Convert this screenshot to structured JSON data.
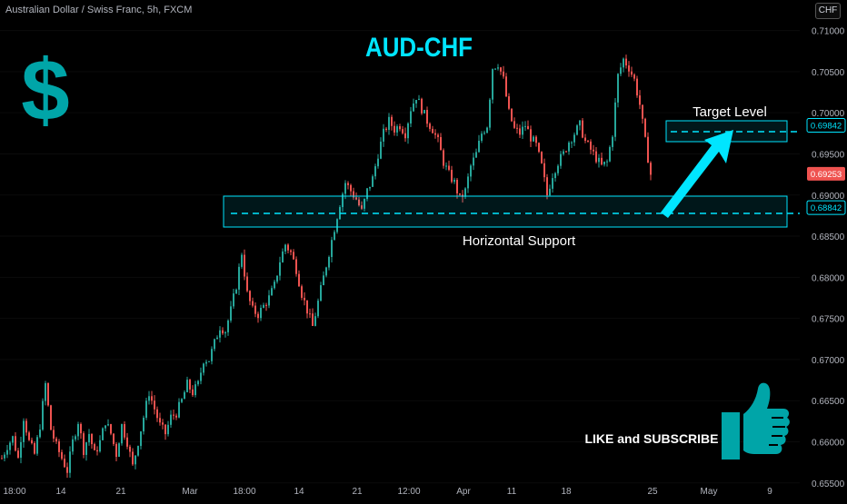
{
  "header": {
    "symbol_info": "Australian Dollar / Swiss Franc, 5h, FXCM",
    "currency_badge": "CHF"
  },
  "colors": {
    "background": "#000000",
    "bull": "#26a69a",
    "bear": "#ef5350",
    "accent": "#00e5ff",
    "text": "#ffffff",
    "axis_text": "#b2b5be",
    "dollar_sign": "#00a5a8",
    "thumbs_up": "#00a5a8"
  },
  "chart_data": {
    "type": "candlestick",
    "title": "AUD-CHF",
    "ylim": [
      0.6552,
      0.7115
    ],
    "y_ticks": [
      "0.71000",
      "0.70500",
      "0.70000",
      "0.69500",
      "0.69000",
      "0.68500",
      "0.68000",
      "0.67500",
      "0.67000",
      "0.66500",
      "0.66000",
      "0.65500"
    ],
    "x_ticks": [
      "18:00",
      "14",
      "21",
      "Mar",
      "18:00",
      "14",
      "21",
      "12:00",
      "Apr",
      "11",
      "18",
      "25",
      "May",
      "9"
    ],
    "price_labels": [
      {
        "value": 0.69842,
        "text": "0.69842",
        "color": "#00e5ff"
      },
      {
        "value": 0.69253,
        "text": "0.69253",
        "color": "#ef5350"
      },
      {
        "value": 0.68842,
        "text": "0.68842",
        "color": "#00e5ff"
      }
    ],
    "annotations": {
      "target_level": {
        "label": "Target Level",
        "price": 0.69842,
        "zone": [
          0.697,
          0.6998
        ]
      },
      "horizontal_support": {
        "label": "Horizontal Support",
        "price": 0.68842,
        "zone": [
          0.6868,
          0.6905
        ]
      },
      "cta": "LIKE and SUBSCRIBE"
    },
    "path_points": [
      [
        0,
        0.658
      ],
      [
        6,
        0.6595
      ],
      [
        12,
        0.6605
      ],
      [
        18,
        0.658
      ],
      [
        24,
        0.663
      ],
      [
        30,
        0.66
      ],
      [
        36,
        0.6585
      ],
      [
        42,
        0.662
      ],
      [
        48,
        0.667
      ],
      [
        54,
        0.6615
      ],
      [
        60,
        0.6595
      ],
      [
        66,
        0.658
      ],
      [
        72,
        0.6565
      ],
      [
        78,
        0.66
      ],
      [
        84,
        0.6625
      ],
      [
        90,
        0.659
      ],
      [
        96,
        0.661
      ],
      [
        102,
        0.6585
      ],
      [
        108,
        0.66
      ],
      [
        114,
        0.6625
      ],
      [
        120,
        0.661
      ],
      [
        126,
        0.6585
      ],
      [
        132,
        0.662
      ],
      [
        138,
        0.66
      ],
      [
        144,
        0.657
      ],
      [
        150,
        0.66
      ],
      [
        156,
        0.663
      ],
      [
        162,
        0.666
      ],
      [
        168,
        0.664
      ],
      [
        174,
        0.662
      ],
      [
        180,
        0.661
      ],
      [
        186,
        0.663
      ],
      [
        192,
        0.6635
      ],
      [
        198,
        0.665
      ],
      [
        204,
        0.667
      ],
      [
        210,
        0.666
      ],
      [
        216,
        0.667
      ],
      [
        222,
        0.67
      ],
      [
        228,
        0.67
      ],
      [
        234,
        0.672
      ],
      [
        240,
        0.674
      ],
      [
        246,
        0.6735
      ],
      [
        252,
        0.676
      ],
      [
        258,
        0.679
      ],
      [
        264,
        0.683
      ],
      [
        270,
        0.678
      ],
      [
        276,
        0.676
      ],
      [
        282,
        0.6755
      ],
      [
        288,
        0.6765
      ],
      [
        294,
        0.6775
      ],
      [
        300,
        0.679
      ],
      [
        306,
        0.682
      ],
      [
        312,
        0.684
      ],
      [
        318,
        0.683
      ],
      [
        324,
        0.681
      ],
      [
        330,
        0.678
      ],
      [
        336,
        0.676
      ],
      [
        342,
        0.674
      ],
      [
        348,
        0.677
      ],
      [
        354,
        0.68
      ],
      [
        360,
        0.683
      ],
      [
        366,
        0.686
      ],
      [
        372,
        0.689
      ],
      [
        378,
        0.6915
      ],
      [
        384,
        0.6905
      ],
      [
        390,
        0.6895
      ],
      [
        396,
        0.688
      ],
      [
        402,
        0.6905
      ],
      [
        408,
        0.692
      ],
      [
        414,
        0.695
      ],
      [
        420,
        0.6975
      ],
      [
        426,
        0.699
      ],
      [
        432,
        0.698
      ],
      [
        438,
        0.6985
      ],
      [
        444,
        0.6975
      ],
      [
        450,
        0.7005
      ],
      [
        456,
        0.702
      ],
      [
        462,
        0.7005
      ],
      [
        468,
        0.699
      ],
      [
        474,
        0.698
      ],
      [
        480,
        0.6965
      ],
      [
        486,
        0.694
      ],
      [
        492,
        0.6925
      ],
      [
        498,
        0.6915
      ],
      [
        504,
        0.6895
      ],
      [
        510,
        0.6905
      ],
      [
        516,
        0.6935
      ],
      [
        522,
        0.695
      ],
      [
        528,
        0.6975
      ],
      [
        534,
        0.6985
      ],
      [
        540,
        0.7055
      ],
      [
        546,
        0.706
      ],
      [
        552,
        0.704
      ],
      [
        558,
        0.7
      ],
      [
        564,
        0.698
      ],
      [
        570,
        0.6975
      ],
      [
        576,
        0.6985
      ],
      [
        582,
        0.697
      ],
      [
        588,
        0.696
      ],
      [
        594,
        0.6935
      ],
      [
        600,
        0.69
      ],
      [
        606,
        0.6925
      ],
      [
        612,
        0.694
      ],
      [
        618,
        0.695
      ],
      [
        624,
        0.6965
      ],
      [
        630,
        0.6975
      ],
      [
        636,
        0.6985
      ],
      [
        642,
        0.6965
      ],
      [
        648,
        0.6955
      ],
      [
        654,
        0.6945
      ],
      [
        660,
        0.6935
      ],
      [
        666,
        0.694
      ],
      [
        672,
        0.6975
      ],
      [
        678,
        0.7045
      ],
      [
        684,
        0.7065
      ],
      [
        690,
        0.7055
      ],
      [
        696,
        0.704
      ],
      [
        702,
        0.701
      ],
      [
        708,
        0.6965
      ],
      [
        714,
        0.6925
      ]
    ]
  }
}
